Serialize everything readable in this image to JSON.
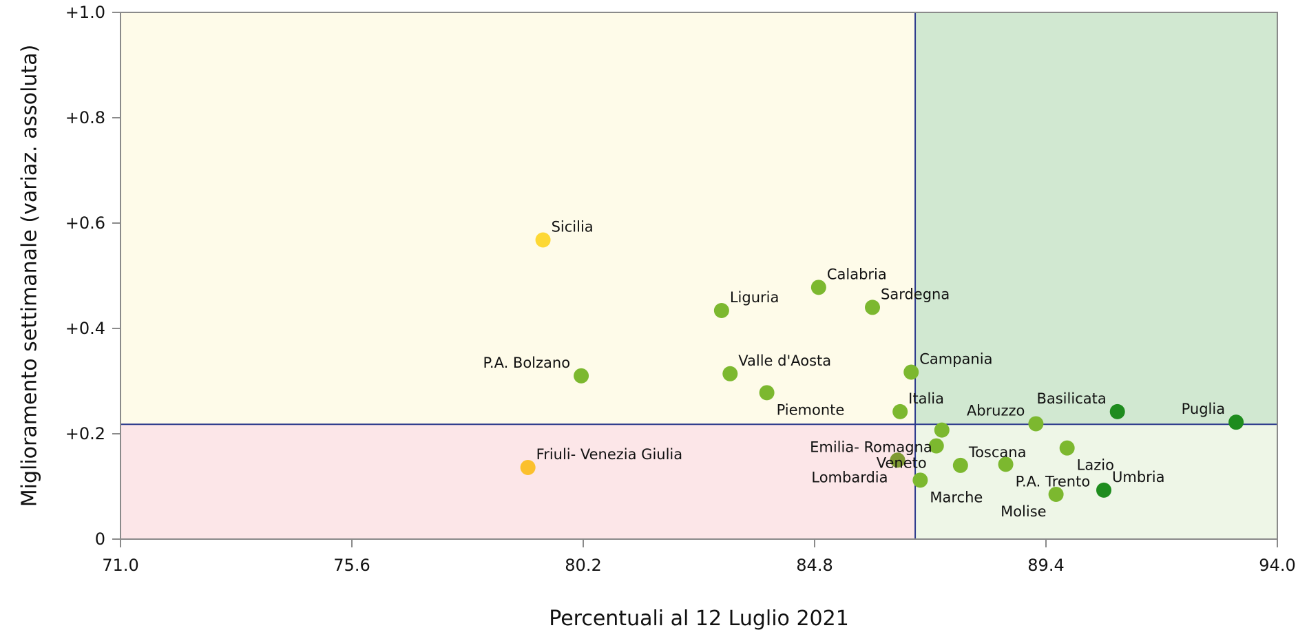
{
  "chart_data": {
    "type": "scatter",
    "title": "",
    "xlabel": "Percentuali al 12 Luglio 2021",
    "ylabel": "Miglioramento settimanale (variaz. assoluta)",
    "xlim": [
      71.0,
      94.0
    ],
    "ylim": [
      0,
      1.0
    ],
    "x_ticks": [
      71.0,
      75.6,
      80.2,
      84.8,
      89.4,
      94.0
    ],
    "x_tick_labels": [
      "71.0",
      "75.6",
      "80.2",
      "84.8",
      "89.4",
      "94.0"
    ],
    "y_ticks": [
      0,
      0.2,
      0.4,
      0.6,
      0.8,
      1.0
    ],
    "y_tick_labels": [
      "0",
      "+0.2",
      "+0.4",
      "+0.6",
      "+0.8",
      "+1.0"
    ],
    "grid": false,
    "reference_lines": {
      "x": 86.8,
      "y": 0.218
    },
    "quadrant_colors": {
      "top_left": "#fefbe9",
      "top_right": "#d1e8d1",
      "bottom_left": "#fce6e8",
      "bottom_right": "#eef6e7"
    },
    "reference_line_color": "#2c3a8c",
    "points": [
      {
        "label": "Sicilia",
        "x": 79.4,
        "y": 0.568,
        "color": "#fdd835",
        "label_pos": "above-right"
      },
      {
        "label": "Friuli- Venezia Giulia",
        "x": 79.1,
        "y": 0.136,
        "color": "#fbc02d",
        "label_pos": "above-right"
      },
      {
        "label": "P.A. Bolzano",
        "x": 80.16,
        "y": 0.31,
        "color": "#7cb82f",
        "label_pos": "above-left"
      },
      {
        "label": "Liguria",
        "x": 82.95,
        "y": 0.434,
        "color": "#7cb82f",
        "label_pos": "above-right"
      },
      {
        "label": "Valle d'Aosta",
        "x": 83.12,
        "y": 0.314,
        "color": "#7cb82f",
        "label_pos": "above-right"
      },
      {
        "label": "Piemonte",
        "x": 83.85,
        "y": 0.278,
        "color": "#7cb82f",
        "label_pos": "below-right"
      },
      {
        "label": "Calabria",
        "x": 84.88,
        "y": 0.478,
        "color": "#7cb82f",
        "label_pos": "above-right"
      },
      {
        "label": "Sardegna",
        "x": 85.95,
        "y": 0.44,
        "color": "#7cb82f",
        "label_pos": "above-right"
      },
      {
        "label": "Campania",
        "x": 86.72,
        "y": 0.317,
        "color": "#7cb82f",
        "label_pos": "above-right"
      },
      {
        "label": "Italia",
        "x": 86.5,
        "y": 0.242,
        "color": "#7cb82f",
        "label_pos": "above-right"
      },
      {
        "label": "Emilia- Romagna",
        "x": 87.33,
        "y": 0.207,
        "color": "#7cb82f",
        "label_pos": "below-left"
      },
      {
        "label": "Veneto",
        "x": 87.22,
        "y": 0.177,
        "color": "#7cb82f",
        "label_pos": "below-left"
      },
      {
        "label": "Lombardia",
        "x": 86.45,
        "y": 0.15,
        "color": "#7f9a33",
        "label_pos": "below-left"
      },
      {
        "label": "Marche",
        "x": 86.9,
        "y": 0.112,
        "color": "#7cb82f",
        "label_pos": "below-right"
      },
      {
        "label": "Toscana",
        "x": 87.7,
        "y": 0.14,
        "color": "#7cb82f",
        "label_pos": "above-right"
      },
      {
        "label": "P.A. Trento",
        "x": 88.6,
        "y": 0.142,
        "color": "#7cb82f",
        "label_pos": "below-right"
      },
      {
        "label": "Abruzzo",
        "x": 89.2,
        "y": 0.219,
        "color": "#7cb82f",
        "label_pos": "above-left"
      },
      {
        "label": "Molise",
        "x": 89.6,
        "y": 0.085,
        "color": "#7cb82f",
        "label_pos": "below-left"
      },
      {
        "label": "Lazio",
        "x": 89.82,
        "y": 0.173,
        "color": "#7cb82f",
        "label_pos": "below-right"
      },
      {
        "label": "Umbria",
        "x": 90.55,
        "y": 0.093,
        "color": "#1e8c1e",
        "label_pos": "above-right"
      },
      {
        "label": "Basilicata",
        "x": 90.82,
        "y": 0.242,
        "color": "#1e8c1e",
        "label_pos": "above-left"
      },
      {
        "label": "Puglia",
        "x": 93.18,
        "y": 0.222,
        "color": "#1e8c1e",
        "label_pos": "above-left"
      }
    ]
  }
}
